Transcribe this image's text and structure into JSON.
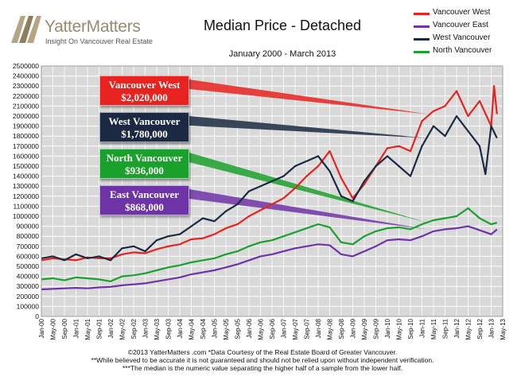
{
  "brand": {
    "name": "YatterMatters",
    "tagline": "Insight On Vancouver Real Estate"
  },
  "colors": {
    "vancouver_west": "#e8231f",
    "vancouver_east": "#6f33a8",
    "west_vancouver": "#1b2a42",
    "north_vancouver": "#1aa12c",
    "plot_bg": "#d9d9d9",
    "grid": "#ffffff"
  },
  "footer": {
    "line1": "©2013 YatterMatters .com     *Data Courtesy of the Real Estate Board of Greater Vancouver.",
    "line2": "**While believed to be accurate it is not guaranteed and should not be relied upon without independent verification.",
    "line3": "***The median is the numeric value separating the higher half of a sample from the lower half."
  },
  "callouts": [
    {
      "name": "Vancouver West",
      "value": "$2,020,000",
      "color": "#e8231f",
      "target": 2020000
    },
    {
      "name": "West Vancouver",
      "value": "$1,780,000",
      "color": "#1b2a42",
      "target": 1780000
    },
    {
      "name": "North Vancouver",
      "value": "$936,000",
      "color": "#1aa12c",
      "target": 936000
    },
    {
      "name": "East Vancouver",
      "value": "$868,000",
      "color": "#6f33a8",
      "target": 868000
    }
  ],
  "chart_data": {
    "type": "line",
    "title": "Median Price - Detached",
    "subtitle": "January 2000 - March 2013",
    "xlabel": "",
    "ylabel": "",
    "ylim": [
      0,
      2500000
    ],
    "ytick_step": 100000,
    "grid": true,
    "legend_position": "top-right",
    "x_start": "2000-01",
    "x_end": "2013-05",
    "x_ticks": [
      "Jan-00",
      "May-00",
      "Sep-00",
      "Jan-01",
      "May-01",
      "Sep-01",
      "Jan-02",
      "May-02",
      "Sep-02",
      "Jan-03",
      "May-03",
      "Sep-03",
      "Jan-04",
      "May-04",
      "Sep-04",
      "Jan-05",
      "May-05",
      "Sep-05",
      "Jan-06",
      "May-06",
      "Sep-06",
      "Jan-07",
      "May-07",
      "Sep-07",
      "Jan-08",
      "May-08",
      "Sep-08",
      "Jan-09",
      "May-09",
      "Sep-09",
      "Jan-10",
      "May-10",
      "Sep-10",
      "Jan-11",
      "May-11",
      "Sep-11",
      "Jan-12",
      "May-12",
      "Sep-12",
      "Jan-13",
      "May-13"
    ],
    "series": [
      {
        "name": "Vancouver West",
        "color": "#e8231f",
        "points": [
          [
            "2000-01",
            560000
          ],
          [
            "2000-05",
            580000
          ],
          [
            "2000-09",
            570000
          ],
          [
            "2001-01",
            560000
          ],
          [
            "2001-05",
            590000
          ],
          [
            "2001-09",
            580000
          ],
          [
            "2002-01",
            580000
          ],
          [
            "2002-05",
            620000
          ],
          [
            "2002-09",
            640000
          ],
          [
            "2003-01",
            630000
          ],
          [
            "2003-05",
            670000
          ],
          [
            "2003-09",
            700000
          ],
          [
            "2004-01",
            720000
          ],
          [
            "2004-05",
            770000
          ],
          [
            "2004-09",
            780000
          ],
          [
            "2005-01",
            820000
          ],
          [
            "2005-05",
            880000
          ],
          [
            "2005-09",
            920000
          ],
          [
            "2006-01",
            1000000
          ],
          [
            "2006-05",
            1060000
          ],
          [
            "2006-09",
            1120000
          ],
          [
            "2007-01",
            1180000
          ],
          [
            "2007-05",
            1280000
          ],
          [
            "2007-09",
            1400000
          ],
          [
            "2008-01",
            1500000
          ],
          [
            "2008-05",
            1650000
          ],
          [
            "2008-09",
            1380000
          ],
          [
            "2009-01",
            1180000
          ],
          [
            "2009-05",
            1320000
          ],
          [
            "2009-09",
            1500000
          ],
          [
            "2010-01",
            1680000
          ],
          [
            "2010-05",
            1700000
          ],
          [
            "2010-09",
            1650000
          ],
          [
            "2011-01",
            1950000
          ],
          [
            "2011-05",
            2050000
          ],
          [
            "2011-09",
            2100000
          ],
          [
            "2012-01",
            2250000
          ],
          [
            "2012-05",
            2000000
          ],
          [
            "2012-09",
            2150000
          ],
          [
            "2013-01",
            1900000
          ],
          [
            "2013-02",
            2300000
          ],
          [
            "2013-03",
            2020000
          ]
        ]
      },
      {
        "name": "Vancouver East",
        "color": "#6f33a8",
        "points": [
          [
            "2000-01",
            270000
          ],
          [
            "2000-05",
            275000
          ],
          [
            "2000-09",
            280000
          ],
          [
            "2001-01",
            285000
          ],
          [
            "2001-05",
            280000
          ],
          [
            "2001-09",
            290000
          ],
          [
            "2002-01",
            295000
          ],
          [
            "2002-05",
            310000
          ],
          [
            "2002-09",
            320000
          ],
          [
            "2003-01",
            330000
          ],
          [
            "2003-05",
            350000
          ],
          [
            "2003-09",
            370000
          ],
          [
            "2004-01",
            390000
          ],
          [
            "2004-05",
            420000
          ],
          [
            "2004-09",
            440000
          ],
          [
            "2005-01",
            460000
          ],
          [
            "2005-05",
            490000
          ],
          [
            "2005-09",
            520000
          ],
          [
            "2006-01",
            560000
          ],
          [
            "2006-05",
            600000
          ],
          [
            "2006-09",
            620000
          ],
          [
            "2007-01",
            650000
          ],
          [
            "2007-05",
            680000
          ],
          [
            "2007-09",
            700000
          ],
          [
            "2008-01",
            720000
          ],
          [
            "2008-05",
            710000
          ],
          [
            "2008-09",
            620000
          ],
          [
            "2009-01",
            600000
          ],
          [
            "2009-05",
            650000
          ],
          [
            "2009-09",
            700000
          ],
          [
            "2010-01",
            760000
          ],
          [
            "2010-05",
            770000
          ],
          [
            "2010-09",
            760000
          ],
          [
            "2011-01",
            800000
          ],
          [
            "2011-05",
            850000
          ],
          [
            "2011-09",
            870000
          ],
          [
            "2012-01",
            880000
          ],
          [
            "2012-05",
            900000
          ],
          [
            "2012-09",
            860000
          ],
          [
            "2013-01",
            820000
          ],
          [
            "2013-03",
            868000
          ]
        ]
      },
      {
        "name": "West Vancouver",
        "color": "#1b2a42",
        "points": [
          [
            "2000-01",
            580000
          ],
          [
            "2000-05",
            600000
          ],
          [
            "2000-09",
            560000
          ],
          [
            "2001-01",
            620000
          ],
          [
            "2001-05",
            580000
          ],
          [
            "2001-09",
            600000
          ],
          [
            "2002-01",
            560000
          ],
          [
            "2002-05",
            680000
          ],
          [
            "2002-09",
            700000
          ],
          [
            "2003-01",
            650000
          ],
          [
            "2003-05",
            760000
          ],
          [
            "2003-09",
            800000
          ],
          [
            "2004-01",
            820000
          ],
          [
            "2004-05",
            900000
          ],
          [
            "2004-09",
            980000
          ],
          [
            "2005-01",
            950000
          ],
          [
            "2005-05",
            1050000
          ],
          [
            "2005-09",
            1120000
          ],
          [
            "2006-01",
            1250000
          ],
          [
            "2006-05",
            1300000
          ],
          [
            "2006-09",
            1350000
          ],
          [
            "2007-01",
            1400000
          ],
          [
            "2007-05",
            1500000
          ],
          [
            "2007-09",
            1550000
          ],
          [
            "2008-01",
            1600000
          ],
          [
            "2008-05",
            1450000
          ],
          [
            "2008-09",
            1200000
          ],
          [
            "2009-01",
            1150000
          ],
          [
            "2009-05",
            1350000
          ],
          [
            "2009-09",
            1500000
          ],
          [
            "2010-01",
            1600000
          ],
          [
            "2010-05",
            1500000
          ],
          [
            "2010-09",
            1400000
          ],
          [
            "2011-01",
            1700000
          ],
          [
            "2011-05",
            1900000
          ],
          [
            "2011-09",
            1800000
          ],
          [
            "2012-01",
            2000000
          ],
          [
            "2012-05",
            1850000
          ],
          [
            "2012-09",
            1700000
          ],
          [
            "2012-11",
            1420000
          ],
          [
            "2013-01",
            1900000
          ],
          [
            "2013-03",
            1780000
          ]
        ]
      },
      {
        "name": "North Vancouver",
        "color": "#1aa12c",
        "points": [
          [
            "2000-01",
            370000
          ],
          [
            "2000-05",
            380000
          ],
          [
            "2000-09",
            360000
          ],
          [
            "2001-01",
            390000
          ],
          [
            "2001-05",
            380000
          ],
          [
            "2001-09",
            370000
          ],
          [
            "2002-01",
            350000
          ],
          [
            "2002-05",
            400000
          ],
          [
            "2002-09",
            410000
          ],
          [
            "2003-01",
            430000
          ],
          [
            "2003-05",
            460000
          ],
          [
            "2003-09",
            490000
          ],
          [
            "2004-01",
            510000
          ],
          [
            "2004-05",
            540000
          ],
          [
            "2004-09",
            560000
          ],
          [
            "2005-01",
            580000
          ],
          [
            "2005-05",
            620000
          ],
          [
            "2005-09",
            650000
          ],
          [
            "2006-01",
            700000
          ],
          [
            "2006-05",
            740000
          ],
          [
            "2006-09",
            760000
          ],
          [
            "2007-01",
            800000
          ],
          [
            "2007-05",
            840000
          ],
          [
            "2007-09",
            880000
          ],
          [
            "2008-01",
            920000
          ],
          [
            "2008-05",
            890000
          ],
          [
            "2008-09",
            740000
          ],
          [
            "2009-01",
            720000
          ],
          [
            "2009-05",
            800000
          ],
          [
            "2009-09",
            850000
          ],
          [
            "2010-01",
            880000
          ],
          [
            "2010-05",
            890000
          ],
          [
            "2010-09",
            870000
          ],
          [
            "2011-01",
            920000
          ],
          [
            "2011-05",
            960000
          ],
          [
            "2011-09",
            980000
          ],
          [
            "2012-01",
            1000000
          ],
          [
            "2012-05",
            1080000
          ],
          [
            "2012-09",
            980000
          ],
          [
            "2013-01",
            920000
          ],
          [
            "2013-03",
            936000
          ]
        ]
      }
    ]
  }
}
